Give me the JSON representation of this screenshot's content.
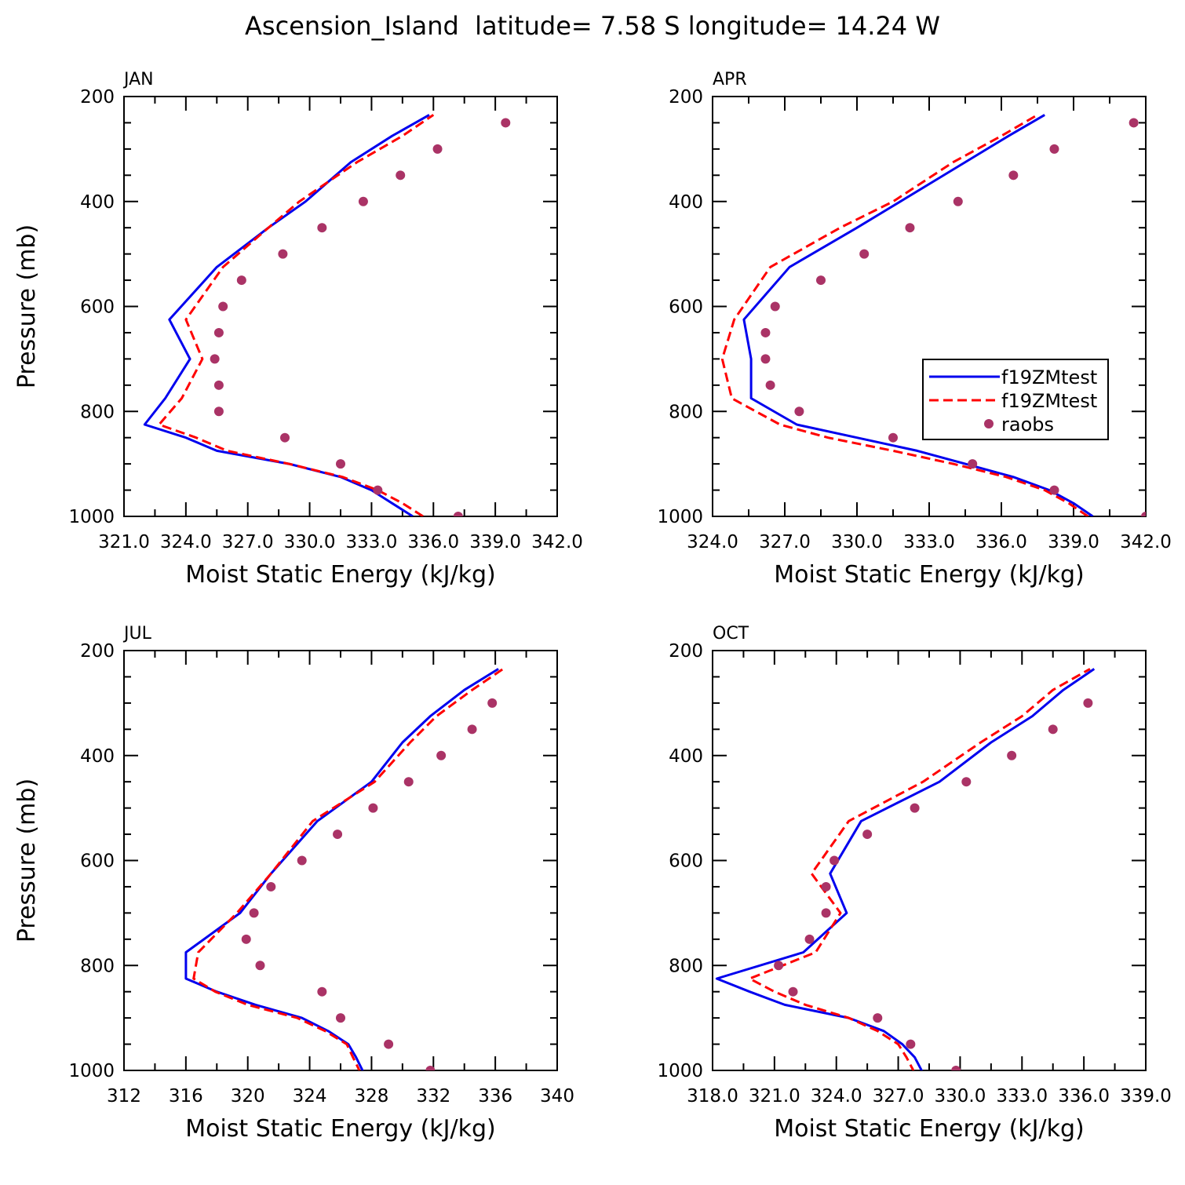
{
  "figure": {
    "title": "Ascension_Island  latitude= 7.58 S longitude= 14.24 W"
  },
  "colors": {
    "model_solid": "#0000ee",
    "model_dashed": "#ff0000",
    "raobs": "#aa3366",
    "frame": "#000000"
  },
  "legend": {
    "entries": [
      "f19ZMtest",
      "f19ZMtest",
      "raobs"
    ]
  },
  "chart_data": [
    {
      "type": "line",
      "panel": "JAN",
      "xlabel": "Moist Static Energy (kJ/kg)",
      "ylabel": "Pressure (mb)",
      "xlim": [
        321.0,
        342.0
      ],
      "ylim": [
        1000,
        200
      ],
      "x_tick_labels": [
        "321.0",
        "324.0",
        "327.0",
        "330.0",
        "333.0",
        "336.0",
        "339.0",
        "342.0"
      ],
      "y_tick_labels": [
        "200",
        "400",
        "600",
        "800",
        "1000"
      ],
      "legend_shown": false,
      "series": [
        {
          "style": "solid",
          "pressure": [
            1000,
            975,
            950,
            925,
            900,
            875,
            850,
            825,
            775,
            700,
            625,
            525,
            450,
            400,
            325,
            275,
            235
          ],
          "values": [
            335.0,
            334.0,
            333.0,
            331.5,
            329.0,
            325.5,
            324.0,
            322.0,
            323.0,
            324.2,
            323.2,
            325.5,
            328.0,
            329.8,
            332.0,
            334.0,
            335.8
          ]
        },
        {
          "style": "dashed",
          "pressure": [
            1000,
            975,
            950,
            925,
            900,
            875,
            850,
            825,
            775,
            700,
            625,
            525,
            450,
            400,
            325,
            275,
            235
          ],
          "values": [
            335.5,
            334.5,
            333.3,
            331.6,
            329.0,
            326.0,
            324.5,
            322.7,
            323.8,
            324.8,
            324.0,
            325.8,
            328.0,
            329.5,
            332.3,
            334.5,
            336.0
          ]
        },
        {
          "style": "markers",
          "pressure": [
            1000,
            950,
            900,
            850,
            800,
            750,
            700,
            650,
            600,
            550,
            500,
            450,
            400,
            350,
            300,
            250
          ],
          "values": [
            337.2,
            333.3,
            331.5,
            328.8,
            325.6,
            325.6,
            325.4,
            325.6,
            325.8,
            326.7,
            328.7,
            330.6,
            332.6,
            334.4,
            336.2,
            339.5
          ]
        }
      ]
    },
    {
      "type": "line",
      "panel": "APR",
      "xlabel": "Moist Static Energy (kJ/kg)",
      "ylabel": "",
      "xlim": [
        324.0,
        342.0
      ],
      "ylim": [
        1000,
        200
      ],
      "x_tick_labels": [
        "324.0",
        "327.0",
        "330.0",
        "333.0",
        "336.0",
        "339.0",
        "342.0"
      ],
      "y_tick_labels": [
        "200",
        "400",
        "600",
        "800",
        "1000"
      ],
      "legend_shown": true,
      "legend_position": "right-middle",
      "series": [
        {
          "style": "solid",
          "pressure": [
            1000,
            975,
            950,
            925,
            900,
            875,
            850,
            825,
            775,
            700,
            625,
            525,
            450,
            400,
            325,
            275,
            235
          ],
          "values": [
            339.8,
            339.0,
            338.0,
            336.5,
            334.5,
            332.5,
            330.0,
            327.5,
            325.6,
            325.6,
            325.3,
            327.2,
            330.0,
            331.8,
            334.5,
            336.3,
            337.8
          ]
        },
        {
          "style": "dashed",
          "pressure": [
            1000,
            975,
            950,
            925,
            900,
            875,
            850,
            825,
            775,
            700,
            625,
            525,
            450,
            400,
            325,
            275,
            235
          ],
          "values": [
            339.6,
            338.8,
            337.8,
            336.2,
            334.0,
            331.5,
            328.8,
            326.8,
            324.8,
            324.4,
            324.9,
            326.4,
            329.3,
            331.5,
            334.0,
            336.0,
            337.5
          ]
        },
        {
          "style": "markers",
          "pressure": [
            1000,
            950,
            900,
            850,
            800,
            750,
            700,
            650,
            600,
            550,
            500,
            450,
            400,
            350,
            300,
            250
          ],
          "values": [
            342.0,
            338.2,
            334.8,
            331.5,
            327.6,
            326.4,
            326.2,
            326.2,
            326.6,
            328.5,
            330.3,
            332.2,
            334.2,
            336.5,
            338.2,
            341.5
          ]
        }
      ]
    },
    {
      "type": "line",
      "panel": "JUL",
      "xlabel": "Moist Static Energy (kJ/kg)",
      "ylabel": "Pressure (mb)",
      "xlim": [
        312,
        340
      ],
      "ylim": [
        1000,
        200
      ],
      "x_tick_labels": [
        "312",
        "316",
        "320",
        "324",
        "328",
        "332",
        "336",
        "340"
      ],
      "y_tick_labels": [
        "200",
        "400",
        "600",
        "800",
        "1000"
      ],
      "legend_shown": false,
      "series": [
        {
          "style": "solid",
          "pressure": [
            1005,
            975,
            950,
            925,
            900,
            875,
            850,
            825,
            775,
            700,
            625,
            525,
            450,
            375,
            325,
            275,
            235
          ],
          "values": [
            327.5,
            327.0,
            326.5,
            325.2,
            323.5,
            320.5,
            318.0,
            316.0,
            316.0,
            319.5,
            321.5,
            324.5,
            328.0,
            330.0,
            331.8,
            334.0,
            336.2
          ]
        },
        {
          "style": "dashed",
          "pressure": [
            1005,
            975,
            950,
            925,
            900,
            875,
            850,
            825,
            775,
            700,
            625,
            525,
            450,
            375,
            325,
            275,
            235
          ],
          "values": [
            327.3,
            326.8,
            326.4,
            325.0,
            323.2,
            320.0,
            317.9,
            316.5,
            316.8,
            319.3,
            321.5,
            324.2,
            328.2,
            330.5,
            332.2,
            334.5,
            336.5
          ]
        },
        {
          "style": "markers",
          "pressure": [
            1000,
            950,
            900,
            850,
            800,
            750,
            700,
            650,
            600,
            550,
            500,
            450,
            400,
            350,
            300
          ],
          "values": [
            331.8,
            329.1,
            326.0,
            324.8,
            320.8,
            319.9,
            320.4,
            321.5,
            323.5,
            325.8,
            328.1,
            330.4,
            332.5,
            334.5,
            335.8
          ]
        }
      ]
    },
    {
      "type": "line",
      "panel": "OCT",
      "xlabel": "Moist Static Energy (kJ/kg)",
      "ylabel": "",
      "xlim": [
        318.0,
        339.0
      ],
      "ylim": [
        1000,
        200
      ],
      "x_tick_labels": [
        "318.0",
        "321.0",
        "324.0",
        "327.0",
        "330.0",
        "333.0",
        "336.0",
        "339.0"
      ],
      "y_tick_labels": [
        "200",
        "400",
        "600",
        "800",
        "1000"
      ],
      "legend_shown": false,
      "series": [
        {
          "style": "solid",
          "pressure": [
            1005,
            975,
            950,
            925,
            900,
            875,
            850,
            825,
            775,
            700,
            625,
            525,
            450,
            375,
            325,
            275,
            235
          ],
          "values": [
            328.2,
            327.8,
            327.2,
            326.3,
            324.6,
            321.5,
            319.8,
            318.2,
            322.4,
            324.5,
            323.7,
            325.2,
            329.0,
            331.5,
            333.5,
            335.0,
            336.5
          ]
        },
        {
          "style": "dashed",
          "pressure": [
            1005,
            975,
            950,
            925,
            900,
            875,
            850,
            825,
            775,
            700,
            625,
            525,
            450,
            375,
            325,
            275,
            235
          ],
          "values": [
            327.8,
            327.4,
            327.0,
            326.0,
            324.6,
            322.5,
            321.0,
            319.8,
            323.0,
            324.2,
            322.8,
            324.6,
            328.2,
            331.0,
            333.0,
            334.5,
            336.3
          ]
        },
        {
          "style": "markers",
          "pressure": [
            1000,
            950,
            900,
            850,
            800,
            750,
            700,
            650,
            600,
            550,
            500,
            450,
            400,
            350,
            300
          ],
          "values": [
            329.8,
            327.6,
            326.0,
            321.9,
            321.2,
            322.7,
            323.5,
            323.5,
            323.9,
            325.5,
            327.8,
            330.3,
            332.5,
            334.5,
            336.2
          ]
        }
      ]
    }
  ]
}
